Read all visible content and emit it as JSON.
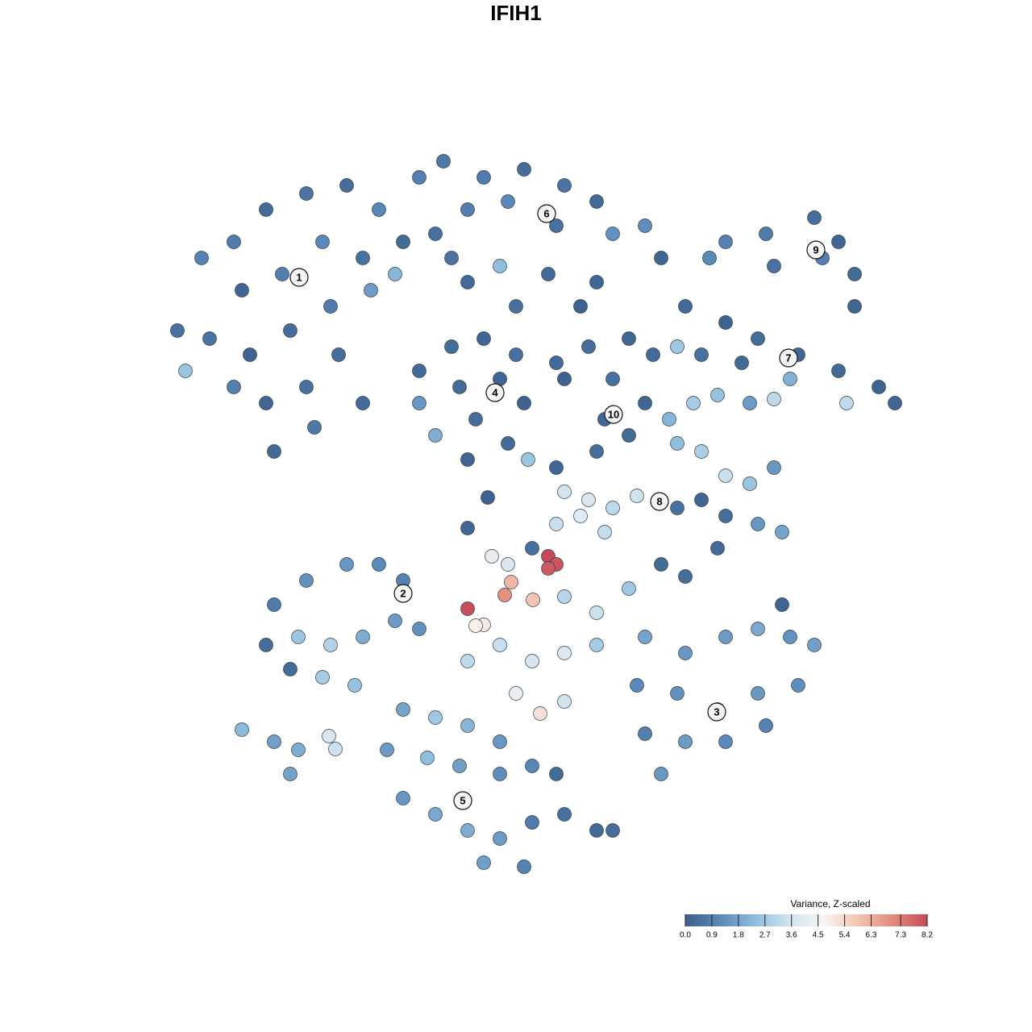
{
  "chart_data": {
    "type": "scatter",
    "title": "IFIH1",
    "xlim": [
      0,
      1280
    ],
    "ylim": [
      1280,
      0
    ],
    "x": [
      220,
      250,
      290,
      330,
      380,
      430,
      470,
      520,
      550,
      300,
      350,
      400,
      450,
      500,
      260,
      310,
      360,
      410,
      460,
      330,
      380,
      340,
      390,
      290,
      230,
      420,
      490,
      540,
      600,
      650,
      700,
      740,
      580,
      630,
      690,
      760,
      800,
      820,
      560,
      620,
      680,
      720,
      900,
      950,
      1010,
      1040,
      1060,
      880,
      960,
      1020,
      1060,
      850,
      900,
      940,
      990,
      1040,
      1090,
      1110,
      870,
      920,
      980,
      1050,
      840,
      520,
      560,
      600,
      640,
      520,
      570,
      620,
      650,
      540,
      590,
      630,
      580,
      690,
      730,
      780,
      810,
      700,
      760,
      750,
      780,
      740,
      800,
      580,
      640,
      740,
      450,
      655,
      690,
      830,
      860,
      890,
      930,
      960,
      840,
      870,
      900,
      930,
      960,
      870,
      900,
      940,
      970,
      890,
      840,
      700,
      730,
      760,
      790,
      690,
      720,
      750,
      610,
      630,
      660,
      680,
      690,
      680,
      634,
      626,
      661,
      580,
      600,
      590,
      700,
      740,
      780,
      620,
      660,
      700,
      740,
      580,
      640,
      670,
      700,
      580,
      605,
      820,
      850,
      340,
      380,
      430,
      470,
      500,
      330,
      370,
      410,
      450,
      490,
      360,
      400,
      440,
      520,
      300,
      340,
      370,
      360,
      408,
      416,
      800,
      850,
      900,
      940,
      980,
      1010,
      790,
      840,
      890,
      940,
      990,
      800,
      850,
      900,
      950,
      820,
      970,
      500,
      540,
      580,
      620,
      480,
      530,
      570,
      620,
      660,
      500,
      540,
      580,
      620,
      660,
      700,
      740,
      600,
      650,
      760,
      690
    ],
    "y": [
      410,
      320,
      300,
      260,
      240,
      230,
      260,
      220,
      200,
      360,
      340,
      300,
      320,
      300,
      420,
      440,
      410,
      380,
      360,
      500,
      480,
      560,
      530,
      480,
      460,
      440,
      340,
      290,
      220,
      210,
      230,
      250,
      260,
      250,
      280,
      290,
      280,
      320,
      320,
      330,
      340,
      380,
      300,
      290,
      270,
      300,
      340,
      320,
      330,
      320,
      380,
      380,
      400,
      420,
      440,
      460,
      480,
      500,
      440,
      450,
      470,
      500,
      430,
      460,
      430,
      420,
      440,
      500,
      480,
      470,
      500,
      540,
      520,
      550,
      570,
      450,
      430,
      420,
      440,
      470,
      470,
      520,
      540,
      560,
      500,
      350,
      380,
      350,
      500,
      570,
      580,
      520,
      500,
      490,
      500,
      495,
      550,
      560,
      590,
      600,
      580,
      620,
      640,
      650,
      660,
      680,
      630,
      610,
      620,
      630,
      615,
      650,
      640,
      660,
      690,
      700,
      680,
      690,
      700,
      705,
      722,
      738,
      744,
      755,
      775,
      776,
      740,
      760,
      730,
      800,
      820,
      810,
      800,
      820,
      860,
      885,
      870,
      655,
      617,
      700,
      715,
      750,
      720,
      700,
      700,
      720,
      800,
      790,
      800,
      790,
      770,
      830,
      840,
      850,
      780,
      905,
      920,
      930,
      960,
      913,
      929,
      790,
      810,
      790,
      780,
      790,
      800,
      850,
      860,
      880,
      860,
      850,
      910,
      920,
      920,
      900,
      960,
      750,
      880,
      890,
      900,
      920,
      930,
      940,
      950,
      960,
      950,
      990,
      1010,
      1030,
      1040,
      1020,
      1010,
      1030,
      1070,
      1075,
      1030,
      960
    ],
    "values": [
      0.5,
      1.0,
      0.8,
      0.3,
      0.6,
      0.4,
      1.1,
      0.9,
      0.7,
      0.2,
      0.9,
      1.2,
      0.5,
      0.3,
      0.6,
      0.1,
      0.4,
      0.8,
      1.6,
      0.2,
      0.5,
      0.3,
      0.7,
      0.9,
      2.6,
      0.4,
      2.2,
      0.5,
      0.8,
      0.4,
      0.6,
      0.3,
      0.9,
      1.2,
      0.5,
      1.4,
      1.3,
      0.2,
      0.6,
      2.4,
      0.3,
      0.1,
      1.0,
      0.8,
      0.4,
      0.2,
      0.3,
      1.2,
      0.5,
      0.9,
      0.2,
      0.3,
      0.1,
      0.4,
      0.2,
      0.3,
      0.1,
      0.2,
      0.5,
      0.3,
      2.1,
      3.2,
      2.7,
      0.3,
      0.4,
      0.2,
      0.5,
      1.5,
      0.3,
      0.2,
      0.1,
      2.0,
      0.4,
      0.3,
      0.2,
      0.3,
      0.4,
      0.2,
      0.3,
      0.1,
      0.5,
      0.2,
      0.3,
      0.4,
      0.2,
      0.3,
      0.5,
      0.2,
      0.3,
      2.6,
      0.2,
      2.2,
      2.8,
      2.5,
      1.6,
      3.2,
      2.4,
      2.9,
      3.4,
      2.6,
      1.5,
      0.2,
      0.4,
      1.5,
      1.8,
      0.3,
      0.5,
      3.6,
      3.8,
      3.2,
      3.5,
      3.4,
      4.0,
      3.3,
      4.2,
      3.8,
      0.5,
      8.2,
      8.0,
      7.9,
      6.1,
      6.9,
      5.8,
      8.1,
      5.0,
      4.8,
      3.1,
      3.5,
      2.7,
      3.4,
      3.7,
      3.9,
      2.8,
      3.2,
      4.3,
      5.2,
      3.6,
      0.2,
      0.1,
      0.3,
      0.4,
      0.8,
      1.4,
      1.5,
      1.2,
      1.0,
      0.4,
      2.6,
      3.0,
      2.0,
      1.6,
      0.3,
      2.8,
      2.5,
      1.4,
      2.3,
      1.7,
      2.0,
      1.8,
      3.8,
      3.5,
      1.8,
      1.5,
      1.6,
      1.9,
      1.4,
      1.7,
      1.2,
      1.4,
      1.1,
      1.5,
      1.3,
      0.9,
      1.6,
      1.2,
      1.0,
      1.5,
      0.2,
      1.8,
      2.7,
      2.2,
      1.5,
      1.6,
      2.4,
      1.7,
      1.3,
      1.1,
      1.5,
      1.9,
      2.0,
      1.6,
      0.8,
      0.5,
      0.3,
      1.7,
      1.0,
      0.4,
      0.3
    ],
    "clusters": {
      "labels": [
        "1",
        "2",
        "3",
        "4",
        "5",
        "6",
        "7",
        "8",
        "9",
        "10"
      ],
      "x": [
        371,
        500,
        889,
        614,
        574,
        678,
        978,
        818,
        1012,
        761
      ],
      "y": [
        344,
        736,
        883,
        487,
        993,
        265,
        444,
        622,
        310,
        514
      ]
    },
    "colorbar": {
      "title": "Variance, Z-scaled",
      "colors": [
        "#3d5f8c",
        "#5a88b8",
        "#8dbcdc",
        "#d0e3ef",
        "#f7f5f3",
        "#f2c4b0",
        "#e38a7a",
        "#c54a5a"
      ],
      "ticks": [
        {
          "value": 0,
          "label": "0.0"
        },
        0.9,
        1.8,
        2.7,
        3.6,
        4.5,
        5.4,
        6.3,
        7.3,
        8.2
      ]
    }
  }
}
